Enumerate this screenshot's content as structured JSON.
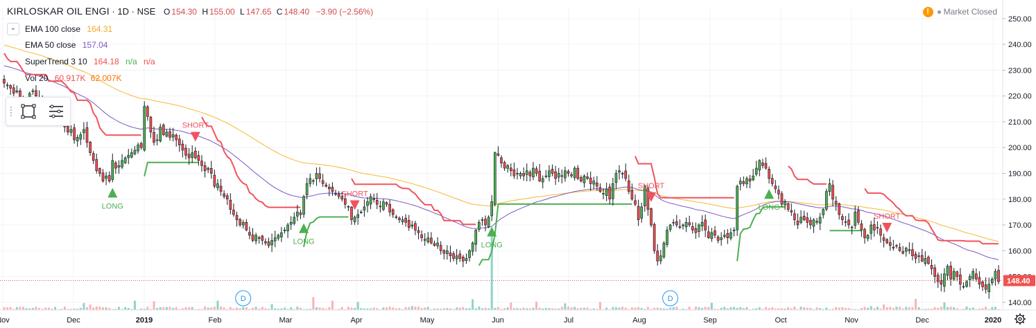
{
  "header": {
    "symbol": "KIRLOSKAR OIL ENGI",
    "interval": "1D",
    "exchange": "NSE",
    "ohlc": {
      "o_label": "O",
      "o": "154.30",
      "h_label": "H",
      "h": "155.00",
      "l_label": "L",
      "l": "147.65",
      "c_label": "C",
      "c": "148.40",
      "change": "−3.90 (−2.56%)"
    },
    "market_status": "Market Closed"
  },
  "indicators": [
    {
      "name": "EMA 100 close",
      "values": [
        "164.31"
      ],
      "color": "#f5b931"
    },
    {
      "name": "EMA 50 close",
      "values": [
        "157.04"
      ],
      "color": "#7e57c2"
    },
    {
      "name": "SuperTrend 3 10",
      "values": [
        "164.18",
        "n/a",
        "n/a"
      ],
      "colors": [
        "#ef4d4d",
        "#4caf50",
        "#ef4d4d"
      ]
    },
    {
      "name": "Vol 20",
      "values": [
        "60.917K",
        "62.007K"
      ],
      "colors": [
        "#ef4d4d",
        "#ff6d00"
      ]
    }
  ],
  "colors": {
    "up": "#26a69a",
    "candle_up": "#4caf50",
    "candle_down": "#ef4d4d",
    "st_up": "#4caf50",
    "st_down": "#f0535d",
    "ema100": "#f5b931",
    "ema50": "#7e57c2",
    "vol_up": "#8fd3c9",
    "vol_down": "#f8b4b4",
    "grid": "#f0f3fa",
    "price_line": "#e05252"
  },
  "chart_data": {
    "type": "candlestick",
    "x_ticks": [
      "Nov",
      "Dec",
      "2019",
      "Feb",
      "Mar",
      "Apr",
      "May",
      "Jun",
      "Jul",
      "Aug",
      "Sep",
      "Oct",
      "Nov",
      "Dec",
      "2020"
    ],
    "y_ticks": [
      "140.00",
      "150.00",
      "160.00",
      "170.00",
      "180.00",
      "190.00",
      "200.00",
      "210.00",
      "220.00",
      "230.00",
      "240.00",
      "250.00"
    ],
    "ylim": [
      137,
      254
    ],
    "last_price": 148.4,
    "last_price_label": "148.40",
    "close": [
      225,
      224,
      223,
      221,
      222,
      219,
      217,
      218,
      221,
      222,
      220,
      219,
      217,
      215,
      213,
      212,
      214,
      211,
      213,
      208,
      206,
      207,
      203,
      204,
      205,
      207,
      202,
      198,
      195,
      191,
      190,
      187,
      189,
      187,
      195,
      192,
      193,
      195,
      196,
      197,
      198,
      199,
      201,
      200,
      216,
      212,
      206,
      202,
      203,
      208,
      205,
      206,
      204,
      205,
      203,
      201,
      199,
      197,
      196,
      198,
      196,
      195,
      193,
      191,
      192,
      190,
      185,
      186,
      183,
      181,
      180,
      176,
      174,
      172,
      170,
      171,
      168,
      166,
      164,
      166,
      165,
      164,
      163,
      162,
      164,
      165,
      166,
      167,
      168,
      170,
      171,
      173,
      175,
      174,
      181,
      186,
      188,
      187,
      190,
      188,
      186,
      185,
      184,
      183,
      182,
      181,
      180,
      178,
      177,
      172,
      173,
      174,
      175,
      177,
      179,
      181,
      180,
      178,
      177,
      179,
      178,
      175,
      174,
      173,
      172,
      172,
      171,
      169,
      170,
      168,
      167,
      165,
      164,
      165,
      163,
      162,
      163,
      160,
      159,
      160,
      158,
      157,
      158,
      157,
      156,
      157,
      160,
      163,
      168,
      171,
      172,
      170,
      173,
      179,
      198,
      197,
      194,
      192,
      193,
      191,
      189,
      190,
      190,
      189,
      191,
      189,
      192,
      190,
      187,
      188,
      189,
      191,
      190,
      188,
      190,
      189,
      191,
      190,
      189,
      192,
      188,
      187,
      189,
      188,
      186,
      187,
      185,
      183,
      182,
      184,
      180,
      186,
      190,
      191,
      190,
      188,
      183,
      180,
      178,
      172,
      177,
      185,
      176,
      170,
      160,
      156,
      158,
      163,
      168,
      170,
      171,
      170,
      169,
      170,
      171,
      170,
      168,
      167,
      170,
      171,
      168,
      165,
      167,
      166,
      164,
      165,
      166,
      165,
      167,
      168,
      185,
      187,
      186,
      188,
      187,
      189,
      192,
      195,
      193,
      192,
      188,
      186,
      184,
      182,
      178,
      179,
      176,
      175,
      172,
      170,
      173,
      172,
      171,
      170,
      172,
      171,
      173,
      176,
      183,
      186,
      180,
      178,
      174,
      172,
      171,
      170,
      169,
      175,
      171,
      168,
      165,
      166,
      170,
      168,
      169,
      166,
      164,
      163,
      162,
      161,
      162,
      160,
      159,
      161,
      160,
      158,
      157,
      158,
      156,
      157,
      155,
      153,
      150,
      148,
      147,
      151,
      154,
      149,
      152,
      150,
      147,
      146,
      148,
      150,
      152,
      149,
      147,
      146,
      145,
      147,
      149,
      152,
      148
    ],
    "indicators": [
      "EMA 100 close",
      "EMA 50 close",
      "SuperTrend 3 10",
      "Vol 20"
    ],
    "signals": [
      {
        "label": "LONG",
        "bar": 34,
        "type": "long"
      },
      {
        "label": "SHORT",
        "bar": 60,
        "type": "short"
      },
      {
        "label": "LONG",
        "bar": 94,
        "type": "long"
      },
      {
        "label": "SHORT",
        "bar": 110,
        "type": "short"
      },
      {
        "label": "LONG",
        "bar": 153,
        "type": "long"
      },
      {
        "label": "SHORT",
        "bar": 203,
        "type": "short"
      },
      {
        "label": "LONG",
        "bar": 240,
        "type": "long"
      },
      {
        "label": "SHORT",
        "bar": 277,
        "type": "short"
      }
    ],
    "dividends": [
      {
        "label": "D",
        "bar": 75
      },
      {
        "label": "D",
        "bar": 209
      }
    ]
  }
}
